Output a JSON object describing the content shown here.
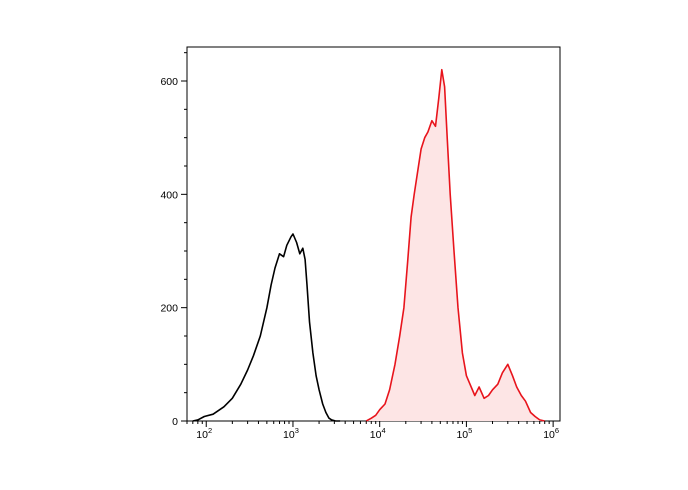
{
  "chart_data": {
    "type": "area",
    "title": "",
    "xlabel": "",
    "ylabel": "",
    "x_scale": "log",
    "xlim": [
      60,
      1200000
    ],
    "ylim": [
      0,
      660
    ],
    "grid": false,
    "y_ticks": [
      0,
      200,
      400,
      600
    ],
    "x_ticks": [
      {
        "value": 100,
        "base": "10",
        "exp": "2"
      },
      {
        "value": 1000,
        "base": "10",
        "exp": "3"
      },
      {
        "value": 10000,
        "base": "10",
        "exp": "4"
      },
      {
        "value": 100000,
        "base": "10",
        "exp": "5"
      },
      {
        "value": 1000000,
        "base": "10",
        "exp": "6"
      }
    ],
    "series": [
      {
        "color": "#000000",
        "filled": false,
        "x": [
          70,
          80,
          95,
          120,
          160,
          200,
          250,
          300,
          350,
          420,
          500,
          560,
          620,
          700,
          780,
          850,
          950,
          1000,
          1100,
          1200,
          1300,
          1380,
          1450,
          1550,
          1700,
          1850,
          2000,
          2200,
          2400,
          2600,
          2800,
          3100,
          3500
        ],
        "y": [
          0,
          2,
          8,
          12,
          25,
          40,
          65,
          90,
          115,
          150,
          200,
          240,
          270,
          295,
          290,
          310,
          325,
          330,
          315,
          295,
          305,
          285,
          240,
          175,
          120,
          80,
          55,
          30,
          15,
          5,
          2,
          0,
          0
        ]
      },
      {
        "color": "#e8141c",
        "fill": "#fde5e5",
        "filled": true,
        "x": [
          7000,
          8000,
          9000,
          10000,
          11500,
          13000,
          15000,
          17000,
          19000,
          21000,
          23000,
          25000,
          28000,
          30000,
          33000,
          36000,
          40000,
          44000,
          48000,
          52000,
          56000,
          60000,
          65000,
          72000,
          80000,
          90000,
          100000,
          110000,
          125000,
          140000,
          160000,
          180000,
          200000,
          230000,
          260000,
          300000,
          340000,
          380000,
          430000,
          480000,
          550000,
          620000,
          700000,
          800000
        ],
        "y": [
          0,
          5,
          10,
          20,
          30,
          55,
          100,
          150,
          200,
          280,
          360,
          400,
          450,
          480,
          500,
          510,
          530,
          520,
          570,
          620,
          590,
          500,
          400,
          300,
          200,
          120,
          80,
          65,
          45,
          60,
          40,
          45,
          55,
          65,
          85,
          100,
          80,
          60,
          45,
          35,
          15,
          8,
          2,
          0
        ]
      }
    ]
  }
}
